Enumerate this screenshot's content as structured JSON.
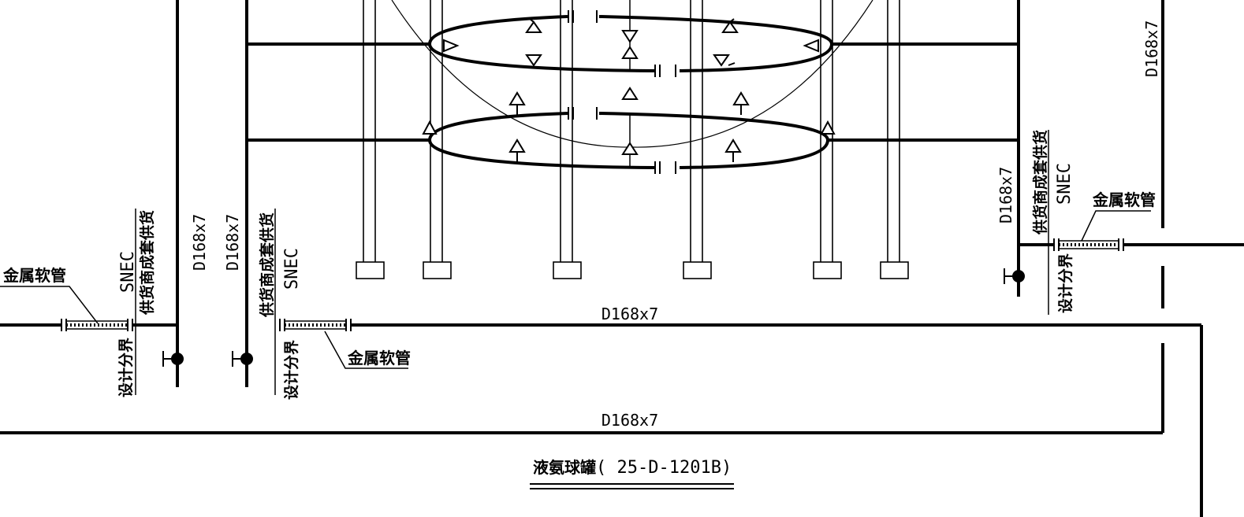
{
  "pipe_spec": "D168x7",
  "metal_hose": "金属软管",
  "design_boundary": "设计分界",
  "vendor_supply": "供货商成套供货",
  "vendor": "SNEC",
  "title": {
    "name": "液氨球罐",
    "tag": "( 25-D-1201B)"
  },
  "colors": {
    "line": "#000000",
    "background": "#ffffff"
  }
}
